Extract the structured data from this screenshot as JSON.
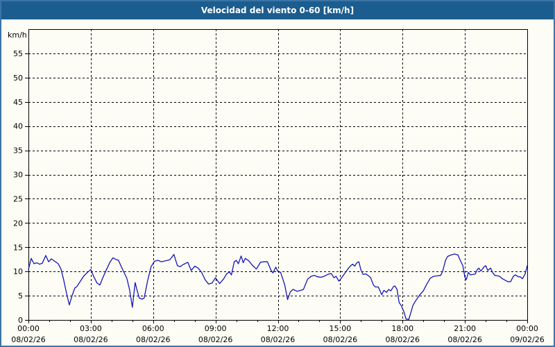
{
  "window": {
    "title": "Velocidad del viento 0-60 [km/h]"
  },
  "colors": {
    "titlebar_bg": "#1c5d90",
    "title_text": "#ffffff",
    "window_border": "#3a75a5",
    "chart_bg": "#fdfdf6",
    "grid": "#000000",
    "series_line": "#1414b8"
  },
  "chart_data": {
    "type": "line",
    "title": "Velocidad del viento 0-60 [km/h]",
    "xlabel": "",
    "ylabel": "km/h",
    "ylim": [
      0,
      60
    ],
    "ytick_step": 5,
    "ytick_labels": [
      "0",
      "5",
      "10",
      "15",
      "20",
      "25",
      "30",
      "35",
      "40",
      "45",
      "50",
      "55"
    ],
    "x_total_minutes": 1440,
    "x_major_interval_minutes": 180,
    "x_minor_interval_minutes": 60,
    "grid": "dashed",
    "legend_position": "none",
    "xticks": [
      {
        "time": "00:00",
        "date": "08/02/26"
      },
      {
        "time": "03:00",
        "date": "08/02/26"
      },
      {
        "time": "06:00",
        "date": "08/02/26"
      },
      {
        "time": "09:00",
        "date": "08/02/26"
      },
      {
        "time": "12:00",
        "date": "08/02/26"
      },
      {
        "time": "15:00",
        "date": "08/02/26"
      },
      {
        "time": "18:00",
        "date": "08/02/26"
      },
      {
        "time": "21:00",
        "date": "08/02/26"
      },
      {
        "time": "00:00",
        "date": "09/02/26"
      }
    ],
    "series": [
      {
        "name": "Velocidad del viento",
        "unit": "km/h",
        "color": "#1414b8",
        "points": [
          [
            0,
            10.4
          ],
          [
            8,
            12.7
          ],
          [
            16,
            11.6
          ],
          [
            24,
            11.8
          ],
          [
            32,
            11.5
          ],
          [
            40,
            11.7
          ],
          [
            50,
            13.3
          ],
          [
            58,
            12.0
          ],
          [
            66,
            12.6
          ],
          [
            76,
            12.1
          ],
          [
            86,
            11.6
          ],
          [
            94,
            10.5
          ],
          [
            102,
            8.2
          ],
          [
            110,
            5.5
          ],
          [
            118,
            3.1
          ],
          [
            126,
            5.0
          ],
          [
            134,
            6.6
          ],
          [
            140,
            6.9
          ],
          [
            150,
            8.0
          ],
          [
            160,
            9.1
          ],
          [
            170,
            9.8
          ],
          [
            180,
            10.4
          ],
          [
            188,
            9.0
          ],
          [
            198,
            7.6
          ],
          [
            206,
            7.2
          ],
          [
            216,
            8.9
          ],
          [
            226,
            10.5
          ],
          [
            236,
            12.0
          ],
          [
            244,
            12.8
          ],
          [
            252,
            12.5
          ],
          [
            260,
            12.3
          ],
          [
            268,
            11.0
          ],
          [
            276,
            9.8
          ],
          [
            284,
            8.6
          ],
          [
            292,
            6.2
          ],
          [
            300,
            2.6
          ],
          [
            308,
            7.7
          ],
          [
            314,
            6.0
          ],
          [
            320,
            4.5
          ],
          [
            328,
            4.3
          ],
          [
            334,
            4.5
          ],
          [
            344,
            8.1
          ],
          [
            354,
            11.0
          ],
          [
            364,
            12.1
          ],
          [
            374,
            12.3
          ],
          [
            384,
            12.0
          ],
          [
            396,
            12.2
          ],
          [
            408,
            12.4
          ],
          [
            420,
            13.5
          ],
          [
            430,
            11.2
          ],
          [
            438,
            11.0
          ],
          [
            446,
            11.4
          ],
          [
            460,
            11.9
          ],
          [
            470,
            10.2
          ],
          [
            480,
            11.1
          ],
          [
            490,
            10.7
          ],
          [
            500,
            9.8
          ],
          [
            510,
            8.3
          ],
          [
            520,
            7.4
          ],
          [
            530,
            7.6
          ],
          [
            540,
            8.7
          ],
          [
            552,
            7.5
          ],
          [
            564,
            8.5
          ],
          [
            572,
            9.5
          ],
          [
            580,
            9.9
          ],
          [
            586,
            9.3
          ],
          [
            594,
            12.0
          ],
          [
            600,
            12.3
          ],
          [
            606,
            11.6
          ],
          [
            614,
            13.2
          ],
          [
            620,
            11.8
          ],
          [
            626,
            12.7
          ],
          [
            636,
            12.2
          ],
          [
            646,
            11.3
          ],
          [
            658,
            10.5
          ],
          [
            670,
            11.9
          ],
          [
            680,
            12.0
          ],
          [
            690,
            12.0
          ],
          [
            700,
            10.3
          ],
          [
            706,
            9.7
          ],
          [
            714,
            10.9
          ],
          [
            720,
            10.0
          ],
          [
            728,
            9.8
          ],
          [
            740,
            7.2
          ],
          [
            748,
            4.2
          ],
          [
            756,
            5.8
          ],
          [
            764,
            6.3
          ],
          [
            776,
            5.9
          ],
          [
            786,
            6.1
          ],
          [
            794,
            6.3
          ],
          [
            806,
            8.4
          ],
          [
            816,
            9.0
          ],
          [
            826,
            9.2
          ],
          [
            834,
            8.9
          ],
          [
            844,
            8.8
          ],
          [
            854,
            9.0
          ],
          [
            864,
            9.4
          ],
          [
            874,
            9.6
          ],
          [
            882,
            8.7
          ],
          [
            888,
            9.0
          ],
          [
            896,
            8.0
          ],
          [
            900,
            8.3
          ],
          [
            914,
            9.7
          ],
          [
            922,
            10.5
          ],
          [
            930,
            11.2
          ],
          [
            936,
            11.5
          ],
          [
            942,
            11.1
          ],
          [
            948,
            11.8
          ],
          [
            954,
            12.0
          ],
          [
            960,
            10.3
          ],
          [
            966,
            9.4
          ],
          [
            974,
            9.5
          ],
          [
            982,
            9.1
          ],
          [
            988,
            8.7
          ],
          [
            996,
            7.2
          ],
          [
            1002,
            6.8
          ],
          [
            1010,
            6.8
          ],
          [
            1020,
            5.2
          ],
          [
            1026,
            6.1
          ],
          [
            1034,
            5.7
          ],
          [
            1040,
            6.3
          ],
          [
            1046,
            6.0
          ],
          [
            1054,
            6.9
          ],
          [
            1058,
            7.0
          ],
          [
            1064,
            6.3
          ],
          [
            1070,
            3.6
          ],
          [
            1076,
            3.0
          ],
          [
            1084,
            1.7
          ],
          [
            1090,
            0.2
          ],
          [
            1098,
            0.1
          ],
          [
            1104,
            1.5
          ],
          [
            1110,
            3.0
          ],
          [
            1120,
            4.2
          ],
          [
            1130,
            5.2
          ],
          [
            1140,
            6.0
          ],
          [
            1150,
            7.4
          ],
          [
            1160,
            8.6
          ],
          [
            1170,
            9.0
          ],
          [
            1180,
            9.1
          ],
          [
            1190,
            9.2
          ],
          [
            1196,
            10.1
          ],
          [
            1204,
            12.3
          ],
          [
            1210,
            13.1
          ],
          [
            1220,
            13.4
          ],
          [
            1230,
            13.6
          ],
          [
            1240,
            13.4
          ],
          [
            1246,
            12.4
          ],
          [
            1254,
            11.2
          ],
          [
            1260,
            8.8
          ],
          [
            1264,
            8.3
          ],
          [
            1270,
            9.8
          ],
          [
            1276,
            9.3
          ],
          [
            1284,
            9.4
          ],
          [
            1290,
            9.5
          ],
          [
            1296,
            10.4
          ],
          [
            1300,
            10.7
          ],
          [
            1306,
            10.1
          ],
          [
            1316,
            11.0
          ],
          [
            1320,
            11.2
          ],
          [
            1326,
            10.2
          ],
          [
            1334,
            10.7
          ],
          [
            1340,
            9.8
          ],
          [
            1346,
            9.2
          ],
          [
            1354,
            9.1
          ],
          [
            1360,
            9.0
          ],
          [
            1368,
            8.5
          ],
          [
            1376,
            8.2
          ],
          [
            1384,
            7.9
          ],
          [
            1392,
            7.9
          ],
          [
            1400,
            9.0
          ],
          [
            1406,
            9.3
          ],
          [
            1414,
            8.9
          ],
          [
            1420,
            8.9
          ],
          [
            1426,
            8.5
          ],
          [
            1434,
            9.5
          ],
          [
            1440,
            11.2
          ]
        ]
      }
    ]
  }
}
